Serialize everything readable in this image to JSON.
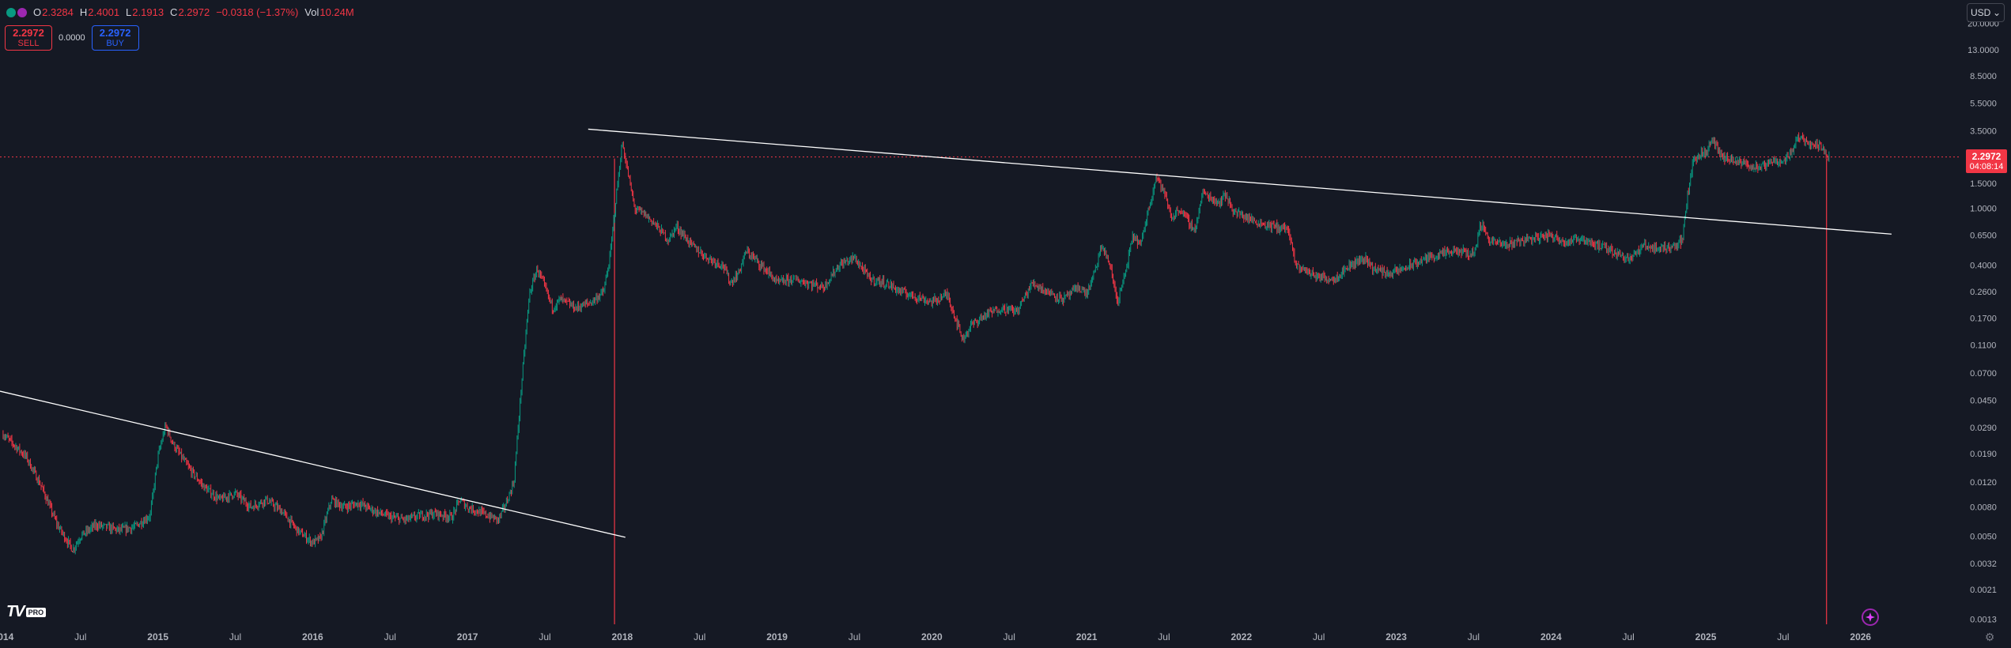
{
  "legend": {
    "open_label": "O",
    "open": "2.3284",
    "high_label": "H",
    "high": "2.4001",
    "low_label": "L",
    "low": "2.1913",
    "close_label": "C",
    "close": "2.2972",
    "change": "−0.0318 (−1.37%)",
    "vol_label": "Vol",
    "vol": "10.24M"
  },
  "trade": {
    "sell_price": "2.2972",
    "sell_label": "SELL",
    "spread": "0.0000",
    "buy_price": "2.2972",
    "buy_label": "BUY"
  },
  "currency": {
    "label": "USD",
    "icon": "chevron-down-icon"
  },
  "last_price": {
    "price": "2.2972",
    "countdown": "04:08:14"
  },
  "logo": {
    "mark": "TV",
    "badge": "PRO"
  },
  "icons": {
    "spark": "sparkle-icon",
    "settings": "gear-icon"
  },
  "colors": {
    "background": "#151924",
    "up": "#089981",
    "down": "#f23645",
    "grid_text": "#b2b5be",
    "trendline": "#ffffff",
    "accent_blue": "#2962ff"
  },
  "chart_data": {
    "type": "candlestick",
    "scale": "log",
    "currency": "USD",
    "x_ticks": [
      "2014",
      "Jul",
      "2015",
      "Jul",
      "2016",
      "Jul",
      "2017",
      "Jul",
      "2018",
      "Jul",
      "2019",
      "Jul",
      "2020",
      "Jul",
      "2021",
      "Jul",
      "2022",
      "Jul",
      "2023",
      "Jul",
      "2024",
      "Jul",
      "2025",
      "Jul",
      "2026"
    ],
    "x_tick_dates": [
      2014.0,
      2014.5,
      2015.0,
      2015.5,
      2016.0,
      2016.5,
      2017.0,
      2017.5,
      2018.0,
      2018.5,
      2019.0,
      2019.5,
      2020.0,
      2020.5,
      2021.0,
      2021.5,
      2022.0,
      2022.5,
      2023.0,
      2023.5,
      2024.0,
      2024.5,
      2025.0,
      2025.5,
      2026.0
    ],
    "y_ticks": [
      "20.0000",
      "13.0000",
      "8.5000",
      "5.5000",
      "3.5000",
      "2.2972",
      "1.5000",
      "1.0000",
      "0.6500",
      "0.4000",
      "0.2600",
      "0.1700",
      "0.1100",
      "0.0700",
      "0.0450",
      "0.0290",
      "0.0190",
      "0.0120",
      "0.0080",
      "0.0050",
      "0.0032",
      "0.0021",
      "0.0013"
    ],
    "y_tick_values": [
      20,
      13,
      8.5,
      5.5,
      3.5,
      2.2972,
      1.5,
      1.0,
      0.65,
      0.4,
      0.26,
      0.17,
      0.11,
      0.07,
      0.045,
      0.029,
      0.019,
      0.012,
      0.008,
      0.005,
      0.0032,
      0.0021,
      0.0013
    ],
    "y_range": [
      0.0012,
      24
    ],
    "x_range": [
      2013.98,
      2026.65
    ],
    "price_path": [
      [
        2014.0,
        0.026
      ],
      [
        2014.15,
        0.018
      ],
      [
        2014.25,
        0.011
      ],
      [
        2014.35,
        0.006
      ],
      [
        2014.45,
        0.004
      ],
      [
        2014.5,
        0.005
      ],
      [
        2014.6,
        0.006
      ],
      [
        2014.75,
        0.0055
      ],
      [
        2014.85,
        0.0058
      ],
      [
        2014.95,
        0.007
      ],
      [
        2015.0,
        0.018
      ],
      [
        2015.05,
        0.03
      ],
      [
        2015.1,
        0.022
      ],
      [
        2015.2,
        0.015
      ],
      [
        2015.3,
        0.011
      ],
      [
        2015.4,
        0.009
      ],
      [
        2015.5,
        0.01
      ],
      [
        2015.6,
        0.008
      ],
      [
        2015.7,
        0.009
      ],
      [
        2015.8,
        0.0075
      ],
      [
        2015.9,
        0.0055
      ],
      [
        2016.0,
        0.0045
      ],
      [
        2016.05,
        0.0048
      ],
      [
        2016.12,
        0.009
      ],
      [
        2016.2,
        0.008
      ],
      [
        2016.3,
        0.0085
      ],
      [
        2016.4,
        0.0075
      ],
      [
        2016.5,
        0.0068
      ],
      [
        2016.6,
        0.0065
      ],
      [
        2016.7,
        0.007
      ],
      [
        2016.8,
        0.0072
      ],
      [
        2016.9,
        0.0068
      ],
      [
        2016.95,
        0.009
      ],
      [
        2017.0,
        0.008
      ],
      [
        2017.1,
        0.0072
      ],
      [
        2017.2,
        0.0065
      ],
      [
        2017.25,
        0.0085
      ],
      [
        2017.3,
        0.012
      ],
      [
        2017.35,
        0.06
      ],
      [
        2017.4,
        0.25
      ],
      [
        2017.45,
        0.38
      ],
      [
        2017.5,
        0.28
      ],
      [
        2017.55,
        0.2
      ],
      [
        2017.6,
        0.23
      ],
      [
        2017.7,
        0.2
      ],
      [
        2017.8,
        0.22
      ],
      [
        2017.88,
        0.26
      ],
      [
        2017.92,
        0.45
      ],
      [
        2017.96,
        1.2
      ],
      [
        2018.0,
        2.9
      ],
      [
        2018.04,
        1.7
      ],
      [
        2018.08,
        1.0
      ],
      [
        2018.15,
        0.9
      ],
      [
        2018.2,
        0.8
      ],
      [
        2018.3,
        0.6
      ],
      [
        2018.35,
        0.75
      ],
      [
        2018.45,
        0.55
      ],
      [
        2018.55,
        0.45
      ],
      [
        2018.65,
        0.4
      ],
      [
        2018.7,
        0.3
      ],
      [
        2018.75,
        0.35
      ],
      [
        2018.8,
        0.5
      ],
      [
        2018.85,
        0.45
      ],
      [
        2018.95,
        0.35
      ],
      [
        2019.0,
        0.3
      ],
      [
        2019.1,
        0.32
      ],
      [
        2019.2,
        0.3
      ],
      [
        2019.3,
        0.28
      ],
      [
        2019.4,
        0.4
      ],
      [
        2019.5,
        0.45
      ],
      [
        2019.6,
        0.32
      ],
      [
        2019.7,
        0.3
      ],
      [
        2019.8,
        0.26
      ],
      [
        2019.9,
        0.24
      ],
      [
        2020.0,
        0.22
      ],
      [
        2020.1,
        0.25
      ],
      [
        2020.2,
        0.12
      ],
      [
        2020.25,
        0.15
      ],
      [
        2020.35,
        0.18
      ],
      [
        2020.45,
        0.2
      ],
      [
        2020.55,
        0.19
      ],
      [
        2020.65,
        0.3
      ],
      [
        2020.75,
        0.26
      ],
      [
        2020.85,
        0.23
      ],
      [
        2020.95,
        0.28
      ],
      [
        2021.0,
        0.25
      ],
      [
        2021.05,
        0.35
      ],
      [
        2021.1,
        0.55
      ],
      [
        2021.15,
        0.4
      ],
      [
        2021.2,
        0.22
      ],
      [
        2021.25,
        0.35
      ],
      [
        2021.3,
        0.65
      ],
      [
        2021.35,
        0.55
      ],
      [
        2021.4,
        1.0
      ],
      [
        2021.45,
        1.7
      ],
      [
        2021.5,
        1.3
      ],
      [
        2021.55,
        0.85
      ],
      [
        2021.6,
        1.0
      ],
      [
        2021.7,
        0.7
      ],
      [
        2021.75,
        1.3
      ],
      [
        2021.85,
        1.1
      ],
      [
        2021.9,
        1.25
      ],
      [
        2021.95,
        0.95
      ],
      [
        2022.0,
        0.9
      ],
      [
        2022.1,
        0.8
      ],
      [
        2022.2,
        0.75
      ],
      [
        2022.3,
        0.72
      ],
      [
        2022.35,
        0.4
      ],
      [
        2022.45,
        0.35
      ],
      [
        2022.5,
        0.33
      ],
      [
        2022.6,
        0.32
      ],
      [
        2022.7,
        0.4
      ],
      [
        2022.8,
        0.45
      ],
      [
        2022.85,
        0.38
      ],
      [
        2022.95,
        0.35
      ],
      [
        2023.0,
        0.36
      ],
      [
        2023.1,
        0.4
      ],
      [
        2023.2,
        0.45
      ],
      [
        2023.3,
        0.48
      ],
      [
        2023.4,
        0.5
      ],
      [
        2023.5,
        0.48
      ],
      [
        2023.55,
        0.8
      ],
      [
        2023.6,
        0.6
      ],
      [
        2023.7,
        0.55
      ],
      [
        2023.8,
        0.6
      ],
      [
        2023.9,
        0.62
      ],
      [
        2024.0,
        0.65
      ],
      [
        2024.1,
        0.58
      ],
      [
        2024.2,
        0.62
      ],
      [
        2024.3,
        0.55
      ],
      [
        2024.4,
        0.5
      ],
      [
        2024.5,
        0.45
      ],
      [
        2024.55,
        0.48
      ],
      [
        2024.6,
        0.55
      ],
      [
        2024.7,
        0.52
      ],
      [
        2024.8,
        0.55
      ],
      [
        2024.85,
        0.6
      ],
      [
        2024.88,
        1.2
      ],
      [
        2024.92,
        2.2
      ],
      [
        2024.96,
        2.4
      ],
      [
        2025.0,
        2.5
      ],
      [
        2025.05,
        3.0
      ],
      [
        2025.1,
        2.3
      ],
      [
        2025.2,
        2.1
      ],
      [
        2025.3,
        2.0
      ],
      [
        2025.35,
        1.9
      ],
      [
        2025.45,
        2.2
      ],
      [
        2025.5,
        2.1
      ],
      [
        2025.55,
        2.5
      ],
      [
        2025.6,
        3.2
      ],
      [
        2025.7,
        2.8
      ],
      [
        2025.75,
        2.7
      ],
      [
        2025.8,
        2.2972
      ]
    ],
    "trendlines": [
      {
        "from": [
          2013.98,
          0.052
        ],
        "to": [
          2018.02,
          0.0049
        ]
      },
      {
        "from": [
          2017.78,
          3.6
        ],
        "to": [
          2026.2,
          0.66
        ]
      }
    ],
    "last_price_line": 2.2972,
    "vertical_markers": [
      2017.95,
      2025.78
    ]
  }
}
